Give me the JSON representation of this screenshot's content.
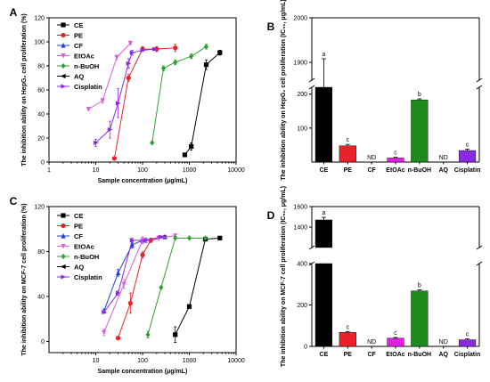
{
  "chart_data": [
    {
      "panel": "A",
      "type": "line",
      "xscale": "log",
      "xlim": [
        1,
        10000
      ],
      "ylim": [
        0,
        120
      ],
      "xticks": [
        "1",
        "10",
        "100",
        "1000",
        "10000"
      ],
      "yticks": [
        "0",
        "20",
        "40",
        "60",
        "80",
        "100",
        "120"
      ],
      "xlabel": "Sample concentration (μg/mL)",
      "ylabel": "The inhibition ability on HepG₂ cell proliferation (%)",
      "series": [
        {
          "name": "CE",
          "color": "#000000",
          "marker": "square",
          "x": [
            800,
            1100,
            2300,
            4500
          ],
          "y": [
            6,
            13,
            81,
            91
          ],
          "err": [
            1,
            3,
            4,
            2
          ]
        },
        {
          "name": "PE",
          "color": "#e8212b",
          "marker": "circle",
          "x": [
            25,
            50,
            100,
            200,
            500
          ],
          "y": [
            3,
            70,
            94,
            94,
            95
          ],
          "err": [
            1,
            3,
            2,
            2,
            3
          ]
        },
        {
          "name": "CF",
          "color": "#1f3fd1",
          "marker": "triangle-up",
          "x": [],
          "y": [],
          "err": []
        },
        {
          "name": "EtOAc",
          "color": "#d85fd8",
          "marker": "triangle-down",
          "x": [
            7,
            14,
            28,
            55
          ],
          "y": [
            44,
            51,
            87,
            99
          ],
          "err": [
            1,
            2,
            2,
            1
          ]
        },
        {
          "name": "n-BuOH",
          "color": "#2e9f2e",
          "marker": "diamond",
          "x": [
            160,
            280,
            500,
            1100,
            2300
          ],
          "y": [
            16,
            78,
            83,
            88,
            96
          ],
          "err": [
            1,
            2,
            2,
            2,
            2
          ]
        },
        {
          "name": "AQ",
          "color": "#000000",
          "marker": "triangle-left",
          "x": [],
          "y": [],
          "err": []
        },
        {
          "name": "Cisplatin",
          "color": "#8a2be2",
          "marker": "triangle-right",
          "x": [
            10,
            20,
            30,
            50,
            60,
            100,
            180
          ],
          "y": [
            16,
            27,
            49,
            82,
            91,
            93,
            94
          ],
          "err": [
            3,
            7,
            12,
            4,
            2,
            1,
            1
          ]
        }
      ]
    },
    {
      "panel": "B",
      "type": "bar",
      "categories": [
        "CE",
        "PE",
        "CF",
        "EtOAc",
        "n-BuOH",
        "AQ",
        "Cisplatin"
      ],
      "values": [
        1840,
        48,
        null,
        12,
        183,
        null,
        34
      ],
      "errors": [
        68,
        4,
        0,
        2,
        3,
        0,
        4
      ],
      "labels": [
        "a",
        "c",
        "ND",
        "c",
        "b",
        "ND",
        "c"
      ],
      "colors": [
        "#000000",
        "#e8212b",
        "#1f3fd1",
        "#e21de2",
        "#1e8a1e",
        "#000000",
        "#8a2be2"
      ],
      "ylabel": "The inhibition ability on HepG₂ cell proliferation (IC₅₀, μg/mL)",
      "yticks_lower": [
        "100",
        "200"
      ],
      "yticks_upper": [
        "1900",
        "2000"
      ],
      "ylim_lower": [
        0,
        220
      ],
      "ylim_upper": [
        1860,
        2000
      ]
    },
    {
      "panel": "C",
      "type": "line",
      "xscale": "log",
      "xlim": [
        1,
        10000
      ],
      "ylim": [
        -10,
        120
      ],
      "xticks": [
        "10",
        "100",
        "1000",
        "10000"
      ],
      "yticks": [
        "0",
        "40",
        "80",
        "120"
      ],
      "xlabel": "Sample concentration (μg/mL)",
      "ylabel": "The inhibition ability on MCF-7 cell proliferation (%)",
      "series": [
        {
          "name": "CE",
          "color": "#000000",
          "marker": "square",
          "x": [
            500,
            1000,
            2200,
            4500
          ],
          "y": [
            6,
            31,
            91,
            92
          ],
          "err": [
            7,
            1,
            1,
            1
          ]
        },
        {
          "name": "PE",
          "color": "#e8212b",
          "marker": "circle",
          "x": [
            30,
            55,
            100,
            150,
            300
          ],
          "y": [
            3,
            34,
            77,
            90,
            93
          ],
          "err": [
            1,
            9,
            3,
            2,
            1
          ]
        },
        {
          "name": "CF",
          "color": "#1f3fd1",
          "marker": "triangle-up",
          "x": [
            15,
            30,
            60,
            100,
            300
          ],
          "y": [
            27,
            61,
            86,
            90,
            93
          ],
          "err": [
            2,
            3,
            3,
            3,
            1
          ]
        },
        {
          "name": "EtOAc",
          "color": "#d85fd8",
          "marker": "triangle-down",
          "x": [
            15,
            40,
            100,
            220,
            500
          ],
          "y": [
            8,
            51,
            90,
            92,
            94
          ],
          "err": [
            3,
            4,
            3,
            2,
            1
          ]
        },
        {
          "name": "n-BuOH",
          "color": "#2e9f2e",
          "marker": "diamond",
          "x": [
            130,
            250,
            500,
            1000,
            2200
          ],
          "y": [
            6,
            48,
            92,
            92,
            92
          ],
          "err": [
            3,
            1,
            1,
            1,
            1
          ]
        },
        {
          "name": "AQ",
          "color": "#000000",
          "marker": "triangle-left",
          "x": [],
          "y": [],
          "err": []
        },
        {
          "name": "Cisplatin",
          "color": "#8a2be2",
          "marker": "triangle-right",
          "x": [
            15,
            30,
            60,
            120,
            250
          ],
          "y": [
            26,
            43,
            90,
            90,
            93
          ],
          "err": [
            1,
            2,
            2,
            2,
            1
          ]
        }
      ]
    },
    {
      "panel": "D",
      "type": "bar",
      "categories": [
        "CE",
        "PE",
        "CF",
        "EtOAc",
        "n-BuOH",
        "AQ",
        "Cisplatin"
      ],
      "values": [
        1470,
        68,
        null,
        40,
        268,
        null,
        32
      ],
      "errors": [
        25,
        4,
        0,
        3,
        5,
        0,
        4
      ],
      "labels": [
        "a",
        "c",
        "ND",
        "c",
        "b",
        "ND",
        "c"
      ],
      "colors": [
        "#000000",
        "#e8212b",
        "#1f3fd1",
        "#e21de2",
        "#1e8a1e",
        "#000000",
        "#8a2be2"
      ],
      "ylabel": "The inhibition ability on MCF-7 cell proliferation (IC₅₀, μg/mL)",
      "yticks_lower": [
        "0",
        "200",
        "400"
      ],
      "yticks_upper": [
        "1400",
        "1600"
      ],
      "ylim_lower": [
        0,
        400
      ],
      "ylim_upper": [
        1200,
        1600
      ]
    }
  ]
}
